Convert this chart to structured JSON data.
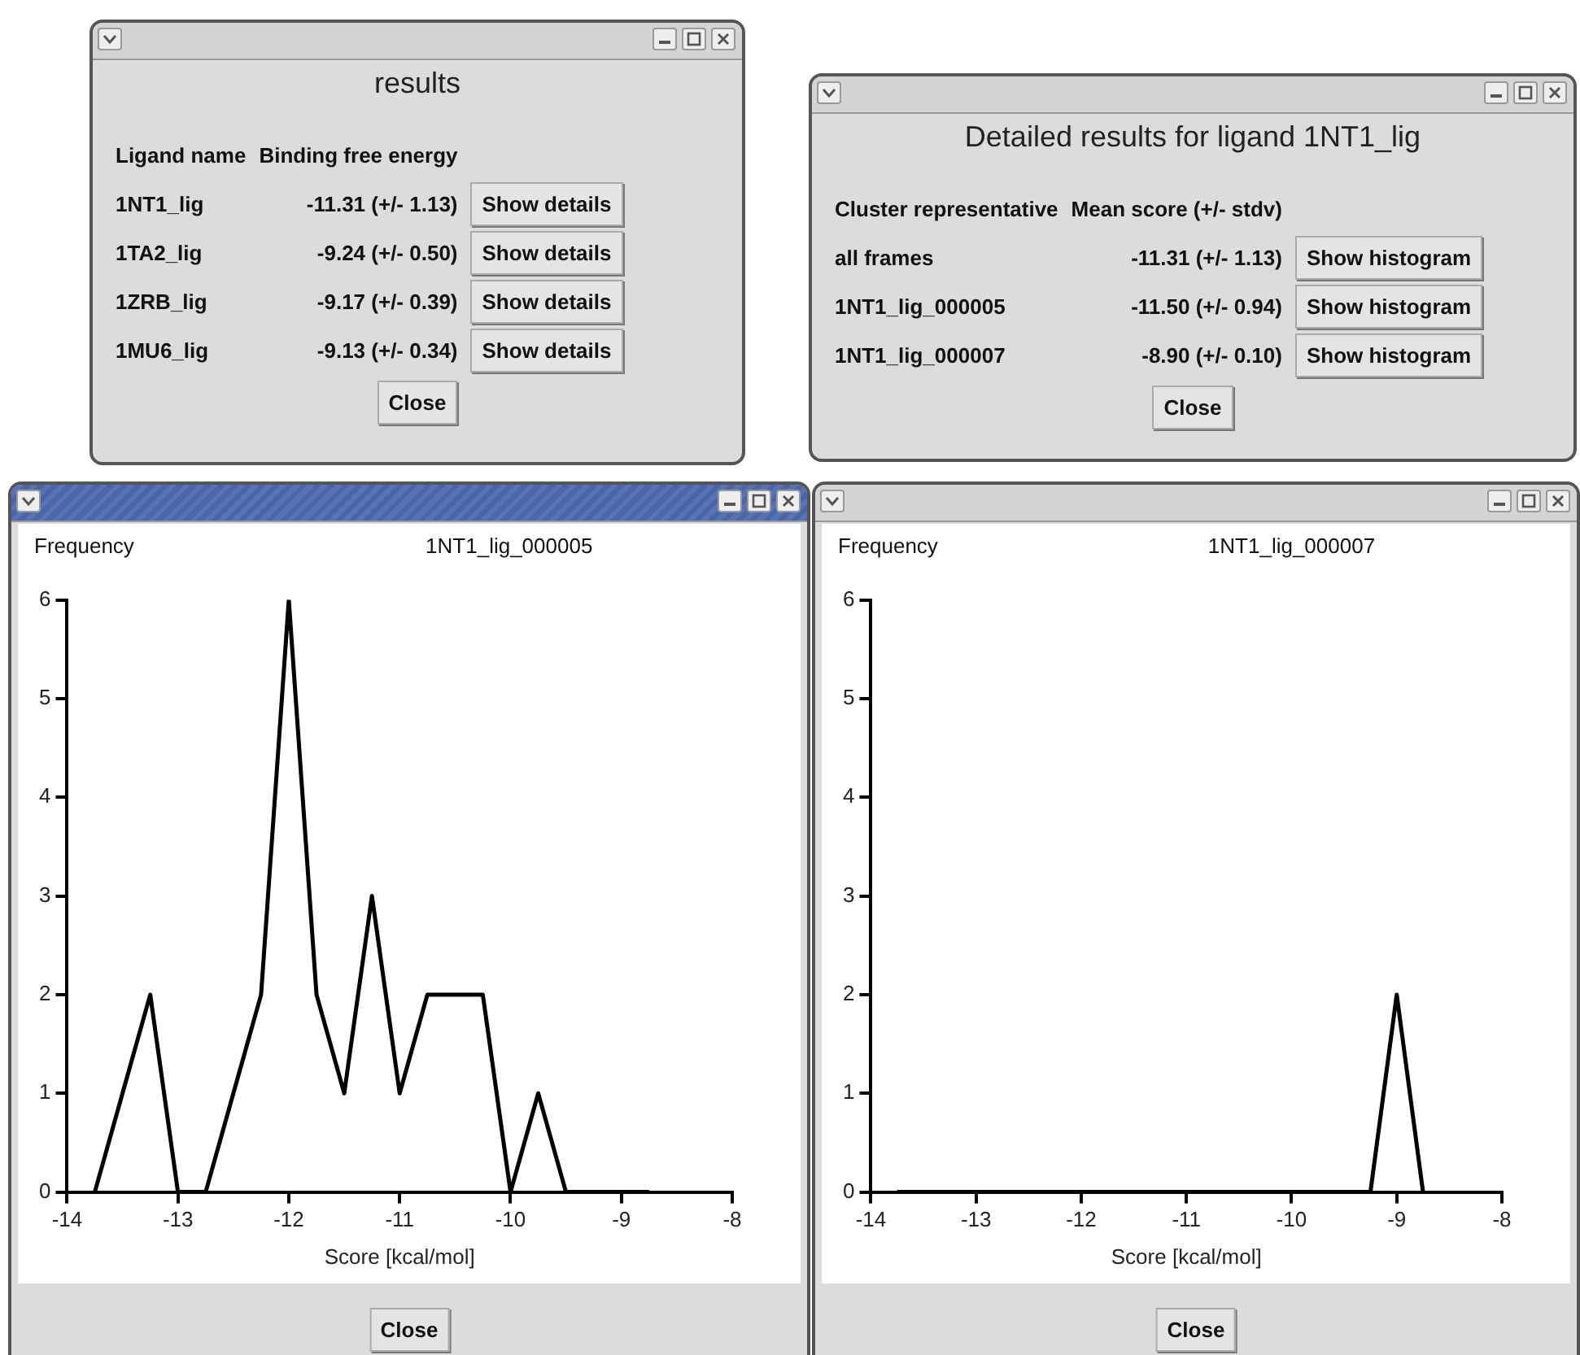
{
  "chart_data": [
    {
      "type": "other",
      "title": "results",
      "categories": [
        "1NT1_lig",
        "1TA2_lig",
        "1ZRB_lig",
        "1MU6_lig"
      ],
      "value_labels": [
        "-11.31 (+/- 1.13)",
        "-9.24 (+/- 0.50)",
        "-9.17 (+/- 0.39)",
        "-9.13 (+/- 0.34)"
      ],
      "annotations": [
        "Ligand name",
        "Binding free energy",
        "Show details",
        "Show details",
        "Show details",
        "Show details",
        "Close"
      ]
    },
    {
      "type": "other",
      "title": "Detailed results for ligand 1NT1_lig",
      "categories": [
        "all frames",
        "1NT1_lig_000005",
        "1NT1_lig_000007"
      ],
      "value_labels": [
        "-11.31 (+/- 1.13)",
        "-11.50 (+/- 0.94)",
        "-8.90 (+/- 0.10)"
      ],
      "annotations": [
        "Cluster representative",
        "Mean score (+/- stdv)",
        "Show histogram",
        "Show histogram",
        "Show histogram",
        "Close"
      ]
    },
    {
      "type": "line",
      "title": "1NT1_lig_000005",
      "ylabel": "Frequency",
      "xlabel": "Score [kcal/mol]",
      "color": "#000000",
      "marker": "none",
      "grid": false,
      "x": [
        -13.75,
        -13.5,
        -13.25,
        -13,
        -12.75,
        -12.5,
        -12.25,
        -12,
        -11.75,
        -11.5,
        -11.25,
        -11,
        -10.75,
        -10.5,
        -10.25,
        -10,
        -9.75,
        -9.5,
        -9.25,
        -9,
        -8.75
      ],
      "values": [
        0,
        1,
        2,
        0,
        0,
        1,
        2,
        6,
        2,
        1,
        3,
        1,
        2,
        2,
        2,
        0,
        1,
        0,
        0,
        0,
        0
      ],
      "xlim": [
        -14,
        -8
      ],
      "xticks": [
        -14,
        -13,
        -12,
        -11,
        -10,
        -9,
        -8
      ],
      "ylim": [
        0,
        6
      ],
      "yticks": [
        0,
        1,
        2,
        3,
        4,
        5,
        6
      ],
      "annotations": [
        "Close"
      ]
    },
    {
      "type": "line",
      "title": "1NT1_lig_000007",
      "ylabel": "Frequency",
      "xlabel": "Score [kcal/mol]",
      "color": "#000000",
      "marker": "none",
      "grid": false,
      "x": [
        -13.75,
        -13.5,
        -13.25,
        -13,
        -12.75,
        -12.5,
        -12.25,
        -12,
        -11.75,
        -11.5,
        -11.25,
        -11,
        -10.75,
        -10.5,
        -10.25,
        -10,
        -9.75,
        -9.5,
        -9.25,
        -9,
        -8.75
      ],
      "values": [
        0,
        0,
        0,
        0,
        0,
        0,
        0,
        0,
        0,
        0,
        0,
        0,
        0,
        0,
        0,
        0,
        0,
        0,
        0,
        2,
        0
      ],
      "xlim": [
        -14,
        -8
      ],
      "xticks": [
        -14,
        -13,
        -12,
        -11,
        -10,
        -9,
        -8
      ],
      "ylim": [
        0,
        6
      ],
      "yticks": [
        0,
        1,
        2,
        3,
        4,
        5,
        6
      ],
      "annotations": [
        "Close"
      ]
    }
  ]
}
